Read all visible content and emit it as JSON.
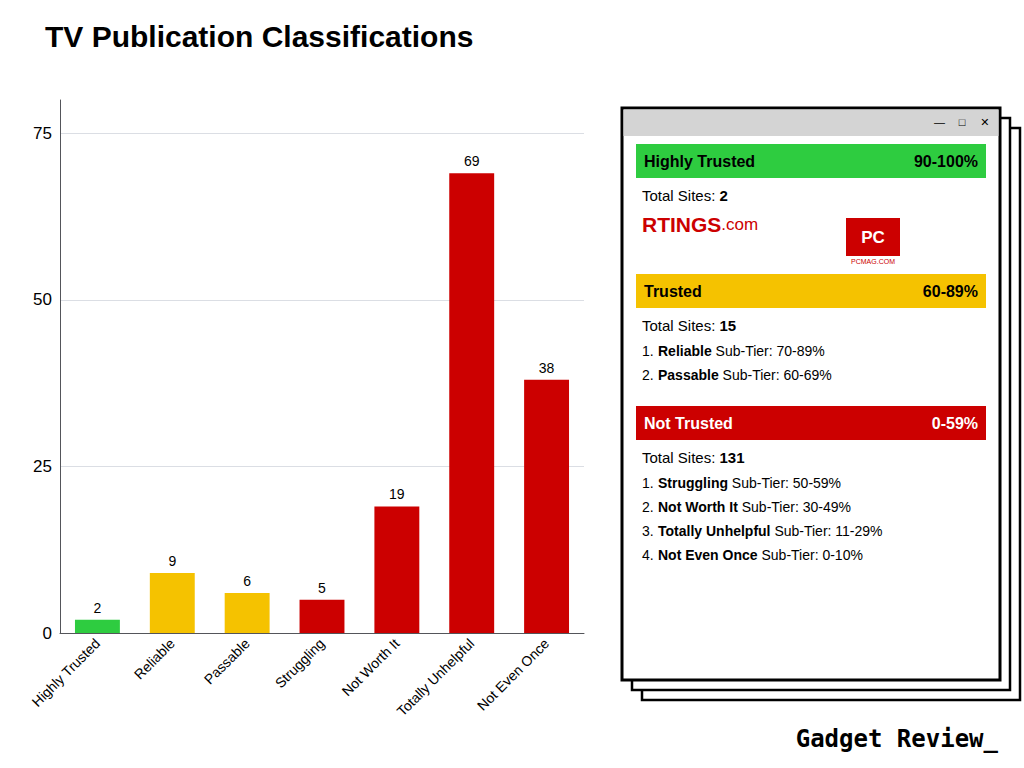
{
  "chart_data": {
    "type": "bar",
    "title": "TV Publication Classifications",
    "categories": [
      "Highly Trusted",
      "Reliable",
      "Passable",
      "Struggling",
      "Not Worth It",
      "Totally Unhelpful",
      "Not Even Once"
    ],
    "values": [
      2,
      9,
      6,
      5,
      19,
      69,
      38
    ],
    "colors": [
      "#2ecc40",
      "#f5c200",
      "#f5c200",
      "#cc0000",
      "#cc0000",
      "#cc0000",
      "#cc0000"
    ],
    "ylim": [
      0,
      80
    ],
    "yticks": [
      0,
      25,
      50,
      75
    ],
    "grid": true,
    "data_labels": true,
    "annotations": {
      "window_buttons": [
        "—",
        "□",
        "✕"
      ],
      "sections": [
        {
          "label": "Highly Trusted",
          "score": "90-100%",
          "color": "#2ecc40",
          "text_color": "#000000",
          "total_label": "Total Sites: ",
          "total_value": 2,
          "items": []
        },
        {
          "label": "Trusted",
          "score": "60-89%",
          "color": "#f5c200",
          "text_color": "#000000",
          "total_label": "Total Sites: ",
          "total_value": 15,
          "items": [
            {
              "num": "1.",
              "bold": "Reliable",
              "normal": " Sub-Tier: 70-89%"
            },
            {
              "num": "2.",
              "bold": "Passable",
              "normal": " Sub-Tier: 60-69%"
            }
          ]
        },
        {
          "label": "Not Trusted",
          "score": "0-59%",
          "color": "#cc0000",
          "text_color": "#ffffff",
          "total_label": "Total Sites: ",
          "total_value": 131,
          "items": [
            {
              "num": "1.",
              "bold": "Struggling",
              "normal": " Sub-Tier: 50-59%"
            },
            {
              "num": "2.",
              "bold": "Not Worth It",
              "normal": " Sub-Tier: 30-49%"
            },
            {
              "num": "3.",
              "bold": "Totally Unhelpful",
              "normal": " Sub-Tier: 11-29%"
            },
            {
              "num": "4.",
              "bold": "Not Even Once",
              "normal": " Sub-Tier: 0-10%"
            }
          ]
        }
      ],
      "logos": {
        "color": "#cc0000",
        "texts": [
          "RTINGS",
          ".com",
          "PC",
          "PCMAG.COM"
        ]
      },
      "watermark": "Gadget Review_"
    }
  }
}
